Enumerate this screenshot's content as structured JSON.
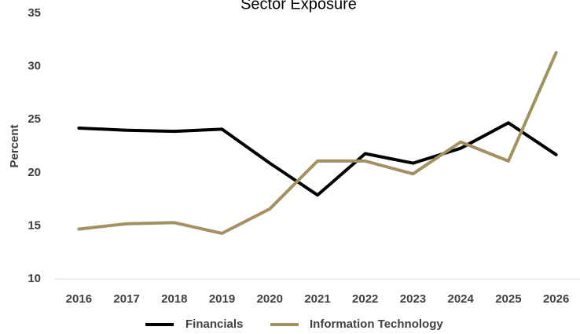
{
  "chart_data": {
    "type": "line",
    "title": "Sector Exposure",
    "xlabel": "",
    "ylabel": "Percent",
    "categories": [
      "2016",
      "2017",
      "2018",
      "2019",
      "2020",
      "2021",
      "2022",
      "2023",
      "2024",
      "2025",
      "2026"
    ],
    "y_ticks": [
      "10",
      "15",
      "20",
      "25",
      "30",
      "35"
    ],
    "ylim": [
      10,
      35
    ],
    "grid": false,
    "legend_position": "bottom",
    "series": [
      {
        "name": "Financials",
        "color": "#000000",
        "values": [
          24.2,
          24.0,
          23.9,
          24.1,
          20.9,
          17.9,
          21.8,
          20.9,
          22.3,
          24.7,
          21.7
        ]
      },
      {
        "name": "Information Technology",
        "color": "#A39161",
        "values": [
          14.7,
          15.2,
          15.3,
          14.3,
          16.6,
          21.1,
          21.1,
          19.9,
          22.9,
          21.1,
          31.3
        ]
      }
    ]
  }
}
